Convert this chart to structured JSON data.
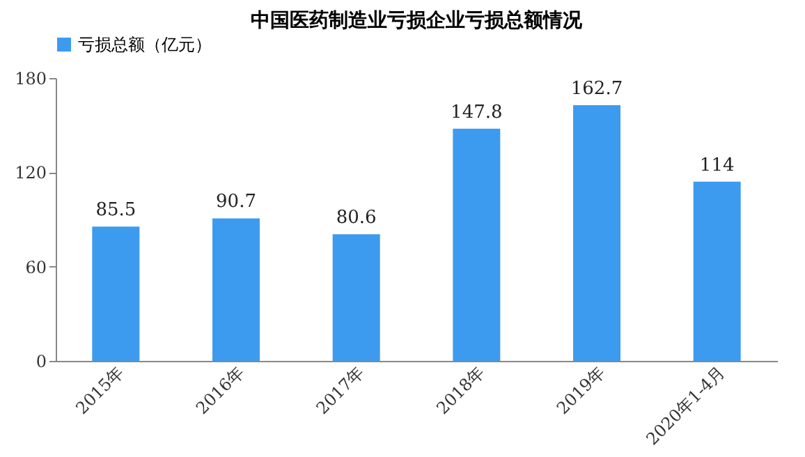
{
  "chart_data": {
    "type": "bar",
    "title": "中国医药制造业亏损企业亏损总额情况",
    "categories": [
      "2015年",
      "2016年",
      "2017年",
      "2018年",
      "2019年",
      "2020年1-4月"
    ],
    "series": [
      {
        "name": "亏损总额（亿元）",
        "color": "#3d9bef",
        "values": [
          85.5,
          90.7,
          80.6,
          147.8,
          162.7,
          114
        ]
      }
    ],
    "ylim": [
      0,
      180
    ],
    "yticks": [
      0,
      60,
      120,
      180
    ],
    "grid": false,
    "legend": "top",
    "data_labels": true
  }
}
